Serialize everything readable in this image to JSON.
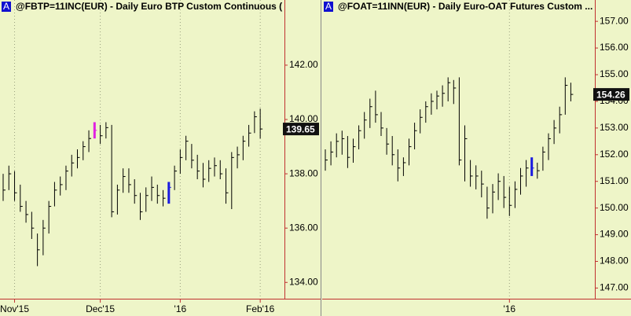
{
  "chart_data": [
    {
      "type": "ohlc",
      "badge": "A",
      "title": "@FBTP=11INC(EUR) - Daily  Euro BTP Custom Continuous (",
      "color": "#000000",
      "highlights": [
        {
          "index": 16,
          "color": "#e020e0"
        },
        {
          "index": 29,
          "color": "#1a1ae0"
        }
      ],
      "ylim": [
        133.4,
        144.4
      ],
      "yticks": [
        {
          "value": 134,
          "label": "134.00"
        },
        {
          "value": 136,
          "label": "136.00"
        },
        {
          "value": 138,
          "label": "138.00"
        },
        {
          "value": 140,
          "label": "140.00"
        },
        {
          "value": 142,
          "label": "142.00"
        }
      ],
      "xticks": [
        {
          "value": 2,
          "label": "Nov'15"
        },
        {
          "value": 17,
          "label": "Dec'15"
        },
        {
          "value": 31,
          "label": "'16"
        },
        {
          "value": 45,
          "label": "Feb'16"
        }
      ],
      "grid": true,
      "series": {
        "high": [
          138.0,
          138.3,
          138.1,
          137.6,
          137.0,
          136.6,
          135.8,
          136.3,
          137.0,
          137.7,
          137.9,
          138.3,
          138.7,
          138.9,
          139.2,
          139.6,
          139.9,
          139.8,
          139.9,
          139.8,
          137.6,
          138.2,
          138.2,
          137.8,
          137.3,
          137.5,
          137.9,
          137.6,
          137.4,
          137.7,
          138.3,
          138.9,
          139.4,
          139.1,
          138.7,
          138.4,
          138.5,
          138.6,
          138.5,
          138.2,
          138.8,
          139.0,
          139.4,
          139.8,
          140.3,
          140.4
        ],
        "low": [
          137.0,
          137.4,
          137.0,
          136.6,
          136.2,
          135.6,
          134.6,
          135.0,
          135.8,
          136.8,
          137.2,
          137.4,
          137.9,
          138.2,
          138.5,
          138.8,
          139.3,
          139.1,
          139.3,
          136.4,
          136.5,
          137.3,
          137.3,
          136.9,
          136.3,
          136.6,
          137.0,
          136.9,
          136.8,
          136.9,
          137.4,
          138.0,
          138.5,
          138.2,
          137.8,
          137.5,
          137.7,
          137.9,
          137.8,
          136.9,
          136.7,
          138.2,
          138.5,
          139.0,
          139.5,
          139.3
        ],
        "close": [
          137.4,
          138.0,
          137.3,
          136.8,
          136.5,
          136.0,
          135.2,
          136.0,
          136.8,
          137.4,
          137.6,
          138.1,
          138.4,
          138.6,
          139.0,
          139.3,
          139.6,
          139.4,
          139.7,
          136.6,
          137.4,
          137.9,
          137.6,
          137.2,
          136.6,
          137.2,
          137.5,
          137.2,
          137.1,
          137.5,
          138.1,
          138.6,
          139.2,
          138.5,
          138.1,
          137.8,
          138.2,
          138.3,
          138.0,
          137.3,
          138.6,
          138.7,
          139.2,
          139.5,
          140.1,
          139.65
        ]
      }
    },
    {
      "type": "ohlc",
      "badge": "A",
      "title": "@FOAT=11INN(EUR) - Daily  Euro-OAT Futures Custom ...",
      "color": "#000000",
      "highlights": [
        {
          "index": 37,
          "color": "#1a1ae0"
        }
      ],
      "ylim": [
        146.6,
        157.8
      ],
      "yticks": [
        {
          "value": 147,
          "label": "147.00"
        },
        {
          "value": 148,
          "label": "148.00"
        },
        {
          "value": 149,
          "label": "149.00"
        },
        {
          "value": 150,
          "label": "150.00"
        },
        {
          "value": 151,
          "label": "151.00"
        },
        {
          "value": 152,
          "label": "152.00"
        },
        {
          "value": 153,
          "label": "153.00"
        },
        {
          "value": 154,
          "label": "154.00"
        },
        {
          "value": 155,
          "label": "155.00"
        },
        {
          "value": 156,
          "label": "156.00"
        },
        {
          "value": 157,
          "label": "157.00"
        }
      ],
      "xticks": [
        {
          "value": 33,
          "label": "'16"
        }
      ],
      "grid": true,
      "series": {
        "high": [
          152.2,
          152.5,
          152.8,
          152.9,
          152.7,
          152.6,
          153.1,
          153.6,
          154.1,
          154.4,
          153.6,
          153.0,
          152.7,
          152.2,
          151.9,
          152.6,
          153.2,
          153.7,
          154.0,
          154.3,
          154.4,
          154.6,
          154.9,
          154.8,
          154.9,
          153.1,
          151.8,
          151.6,
          151.4,
          150.8,
          150.9,
          151.3,
          151.2,
          150.8,
          151.0,
          151.5,
          151.8,
          151.9,
          151.7,
          152.3,
          152.8,
          153.3,
          153.8,
          154.9,
          154.7
        ],
        "low": [
          151.4,
          151.6,
          151.9,
          152.0,
          151.5,
          151.7,
          152.2,
          152.6,
          153.0,
          153.2,
          152.7,
          152.0,
          151.6,
          151.0,
          151.2,
          151.6,
          152.2,
          152.8,
          153.2,
          153.5,
          153.7,
          153.8,
          154.0,
          153.9,
          151.6,
          151.0,
          150.8,
          150.7,
          150.4,
          149.6,
          149.8,
          150.3,
          150.0,
          149.7,
          150.0,
          150.5,
          150.8,
          151.2,
          151.1,
          151.4,
          151.8,
          152.4,
          152.8,
          153.5,
          154.0
        ],
        "close": [
          151.8,
          152.1,
          152.5,
          152.6,
          151.9,
          152.3,
          152.9,
          153.3,
          153.8,
          153.5,
          153.0,
          152.4,
          152.0,
          151.5,
          151.7,
          152.3,
          152.9,
          153.4,
          153.8,
          154.0,
          154.2,
          154.3,
          154.7,
          154.5,
          151.8,
          152.6,
          151.2,
          151.2,
          150.9,
          150.0,
          150.6,
          151.0,
          150.4,
          150.1,
          150.7,
          151.2,
          151.5,
          151.5,
          151.4,
          152.1,
          152.6,
          153.0,
          153.5,
          154.6,
          154.26
        ]
      }
    }
  ]
}
